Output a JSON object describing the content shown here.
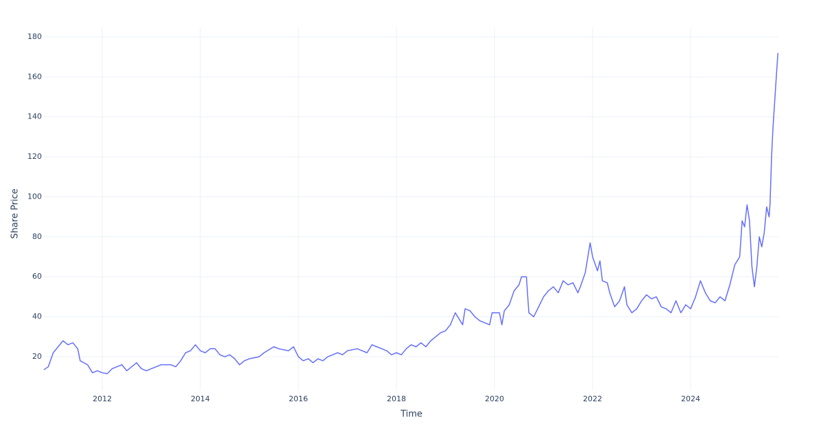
{
  "chart_data": {
    "type": "line",
    "xlabel": "Time",
    "ylabel": "Share Price",
    "color": "#636efa",
    "grid": true,
    "xlim": [
      2010.81,
      2025.79
    ],
    "ylim": [
      3.2,
      184.8
    ],
    "xticks": [
      2012,
      2014,
      2016,
      2018,
      2020,
      2022,
      2024
    ],
    "yticks": [
      20,
      40,
      60,
      80,
      100,
      120,
      140,
      160,
      180
    ],
    "x": [
      2010.81,
      2010.9,
      2011.0,
      2011.1,
      2011.2,
      2011.3,
      2011.4,
      2011.5,
      2011.55,
      2011.7,
      2011.8,
      2011.9,
      2012.0,
      2012.1,
      2012.2,
      2012.3,
      2012.4,
      2012.5,
      2012.6,
      2012.7,
      2012.8,
      2012.9,
      2013.0,
      2013.2,
      2013.4,
      2013.5,
      2013.6,
      2013.7,
      2013.8,
      2013.9,
      2014.0,
      2014.1,
      2014.2,
      2014.3,
      2014.4,
      2014.5,
      2014.6,
      2014.7,
      2014.8,
      2014.9,
      2015.0,
      2015.2,
      2015.3,
      2015.5,
      2015.6,
      2015.8,
      2015.9,
      2016.0,
      2016.1,
      2016.2,
      2016.3,
      2016.4,
      2016.5,
      2016.6,
      2016.7,
      2016.8,
      2016.9,
      2017.0,
      2017.2,
      2017.3,
      2017.4,
      2017.5,
      2017.6,
      2017.8,
      2017.9,
      2018.0,
      2018.1,
      2018.2,
      2018.3,
      2018.4,
      2018.5,
      2018.6,
      2018.7,
      2018.8,
      2018.9,
      2019.0,
      2019.1,
      2019.2,
      2019.3,
      2019.35,
      2019.4,
      2019.5,
      2019.6,
      2019.7,
      2019.8,
      2019.9,
      2019.95,
      2020.1,
      2020.15,
      2020.2,
      2020.3,
      2020.4,
      2020.5,
      2020.55,
      2020.65,
      2020.7,
      2020.8,
      2020.9,
      2021.0,
      2021.1,
      2021.2,
      2021.3,
      2021.4,
      2021.5,
      2021.6,
      2021.7,
      2021.75,
      2021.85,
      2021.95,
      2022.0,
      2022.1,
      2022.15,
      2022.2,
      2022.3,
      2022.35,
      2022.45,
      2022.55,
      2022.65,
      2022.7,
      2022.8,
      2022.9,
      2023.0,
      2023.1,
      2023.2,
      2023.3,
      2023.4,
      2023.5,
      2023.6,
      2023.7,
      2023.8,
      2023.9,
      2024.0,
      2024.1,
      2024.2,
      2024.3,
      2024.4,
      2024.5,
      2024.6,
      2024.7,
      2024.8,
      2024.9,
      2025.0,
      2025.05,
      2025.1,
      2025.15,
      2025.2,
      2025.25,
      2025.3,
      2025.35,
      2025.4,
      2025.45,
      2025.5,
      2025.55,
      2025.6,
      2025.62,
      2025.65,
      2025.68,
      2025.72,
      2025.76,
      2025.78
    ],
    "values": [
      13.5,
      15,
      22,
      25,
      28,
      26,
      27,
      24,
      18,
      16,
      12,
      13,
      12,
      11.5,
      14,
      15,
      16,
      13,
      15,
      17,
      14,
      13,
      14,
      16,
      16,
      15,
      18,
      22,
      23,
      26,
      23,
      22,
      24,
      24,
      21,
      20,
      21,
      19,
      16,
      18,
      19,
      20,
      22,
      25,
      24,
      23,
      25,
      20,
      18,
      19,
      17,
      19,
      18,
      20,
      21,
      22,
      21,
      23,
      24,
      23,
      22,
      26,
      25,
      23,
      21,
      22,
      21,
      24,
      26,
      25,
      27,
      25,
      28,
      30,
      32,
      33,
      36,
      42,
      38,
      36,
      44,
      43,
      40,
      38,
      37,
      36,
      42,
      42,
      36,
      43,
      46,
      53,
      56,
      60,
      60,
      42,
      40,
      45,
      50,
      53,
      55,
      52,
      58,
      56,
      57,
      52,
      55,
      62,
      77,
      70,
      63,
      68,
      58,
      57,
      52,
      45,
      48,
      55,
      46,
      42,
      44,
      48,
      51,
      49,
      50,
      45,
      44,
      42,
      48,
      42,
      46,
      44,
      50,
      58,
      52,
      48,
      47,
      50,
      48,
      56,
      66,
      70,
      88,
      85,
      96,
      88,
      65,
      55,
      65,
      80,
      75,
      82,
      95,
      90,
      97,
      120,
      135,
      150,
      165,
      172
    ]
  }
}
